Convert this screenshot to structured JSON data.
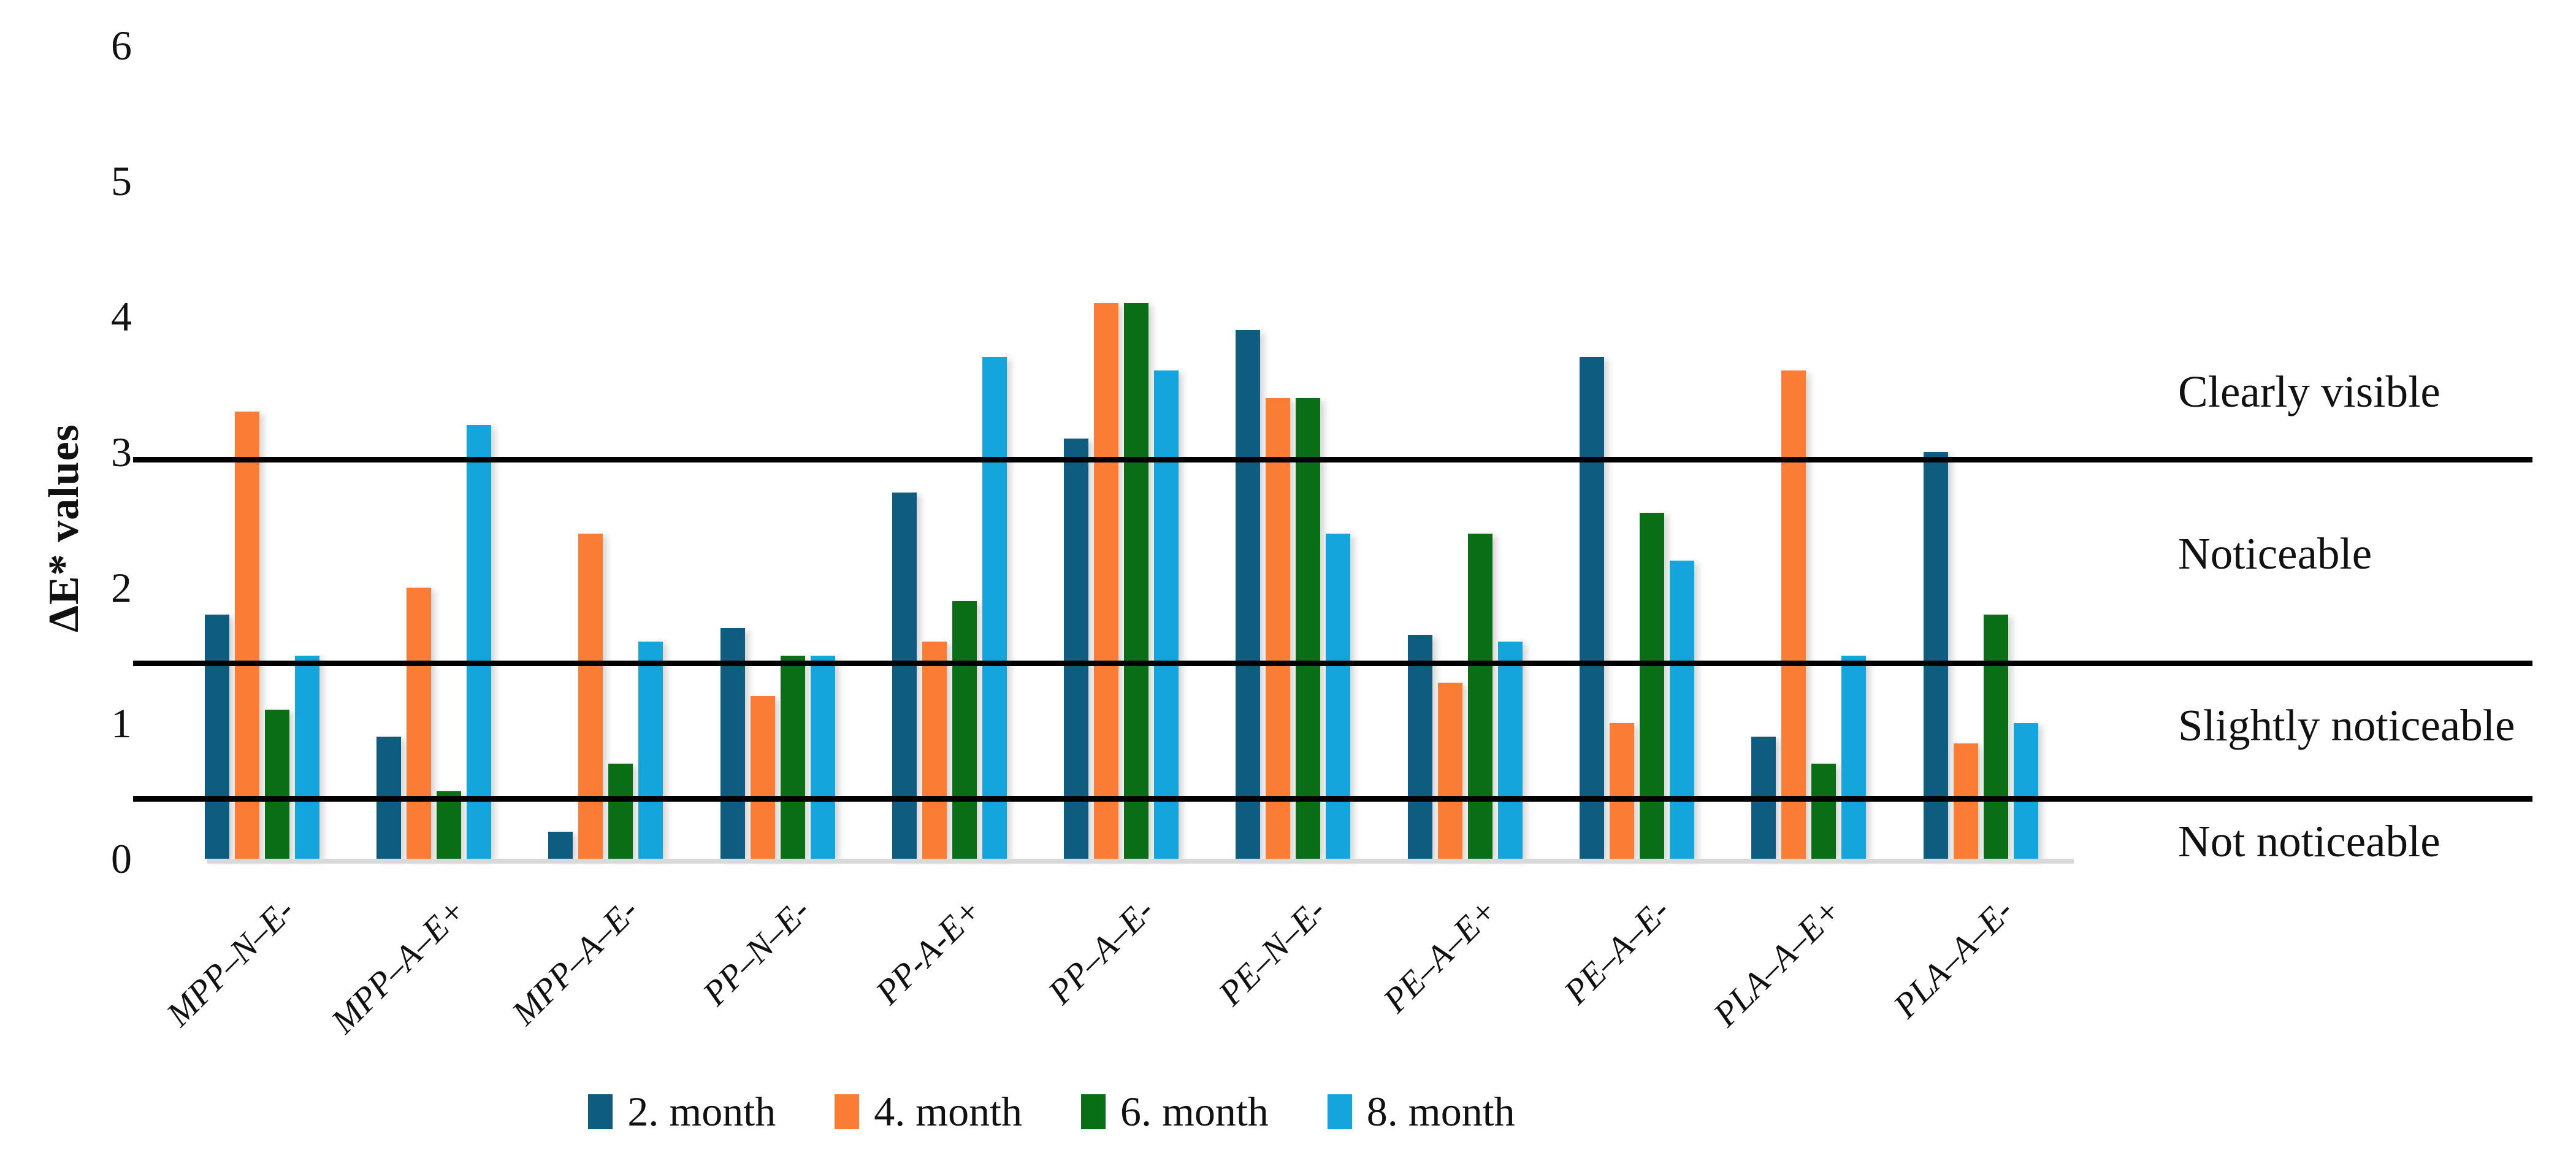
{
  "chart_data": {
    "type": "bar",
    "title": "",
    "ylabel": "ΔE* values",
    "xlabel": "",
    "ylim": [
      0,
      6
    ],
    "y_ticks": [
      0,
      1,
      2,
      3,
      4,
      5,
      6
    ],
    "grid": false,
    "legend_position": "bottom",
    "categories": [
      "MPP–N–E-",
      "MPP–A–E+",
      "MPP–A–E-",
      "PP–N–E-",
      "PP-A-E+",
      "PP–A–E-",
      "PE–N–E-",
      "PE–A–E+",
      "PE–A–E-",
      "PLA–A–E+",
      "PLA–A–E-"
    ],
    "series": [
      {
        "name": "2. month",
        "color": "#0e5c7f",
        "values": [
          1.8,
          0.9,
          0.2,
          1.7,
          2.7,
          3.1,
          3.9,
          1.65,
          3.7,
          0.9,
          3.0
        ]
      },
      {
        "name": "4. month",
        "color": "#fb7c35",
        "values": [
          3.3,
          2.0,
          2.4,
          1.2,
          1.6,
          4.1,
          3.4,
          1.3,
          1.0,
          3.6,
          0.85
        ]
      },
      {
        "name": "6. month",
        "color": "#0a6e17",
        "values": [
          1.1,
          0.5,
          0.7,
          1.5,
          1.9,
          4.1,
          3.4,
          2.4,
          2.55,
          0.7,
          1.8
        ]
      },
      {
        "name": "8. month",
        "color": "#14a5dd",
        "values": [
          1.5,
          3.2,
          1.6,
          1.5,
          3.7,
          3.6,
          2.4,
          1.6,
          2.2,
          1.5,
          1.0
        ]
      }
    ],
    "threshold_lines": [
      {
        "value": 3.0
      },
      {
        "value": 1.5
      },
      {
        "value": 0.5
      }
    ],
    "band_labels": [
      {
        "label": "Clearly visible",
        "position": "above 3.0"
      },
      {
        "label": "Noticeable",
        "position": "between 1.5 and 3.0"
      },
      {
        "label": "Slightly noticeable",
        "position": "between 0.5 and 1.5"
      },
      {
        "label": "Not noticeable",
        "position": "below 0.5"
      }
    ],
    "colors": {
      "threshold_line": "#000000",
      "axis_baseline": "#d9d9d9",
      "text": "#111111"
    }
  }
}
